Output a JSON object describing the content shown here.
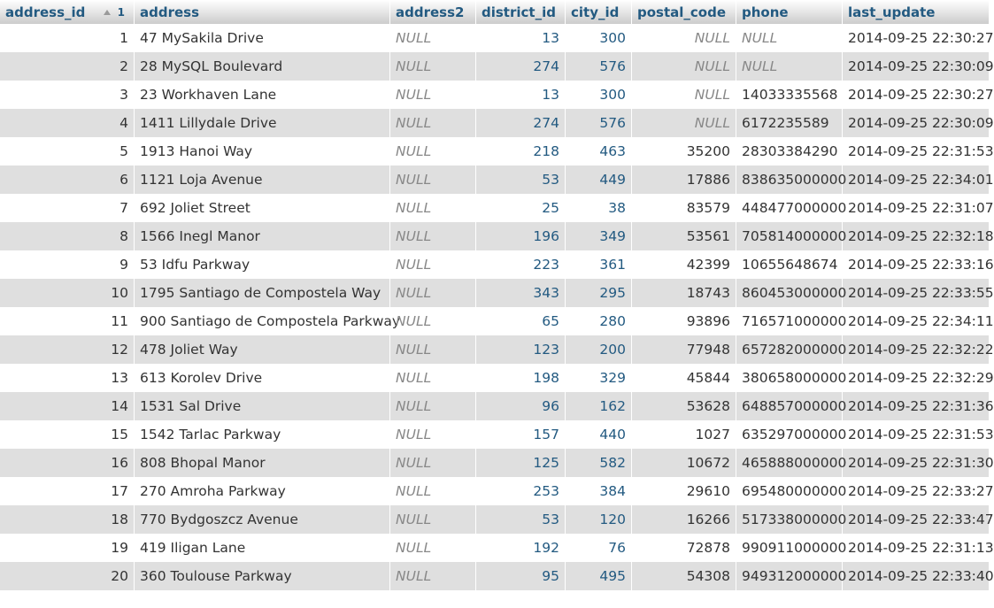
{
  "headers": {
    "address_id": "address_id",
    "sort_order": "1",
    "address": "address",
    "address2": "address2",
    "district_id": "district_id",
    "city_id": "city_id",
    "postal_code": "postal_code",
    "phone": "phone",
    "last_update": "last_update"
  },
  "rows": [
    {
      "address_id": "1",
      "address": "47 MySakila Drive",
      "address2": "NULL",
      "district_id": "13",
      "city_id": "300",
      "postal_code": "NULL",
      "phone": "NULL",
      "last_update": "2014-09-25 22:30:27"
    },
    {
      "address_id": "2",
      "address": "28 MySQL Boulevard",
      "address2": "NULL",
      "district_id": "274",
      "city_id": "576",
      "postal_code": "NULL",
      "phone": "NULL",
      "last_update": "2014-09-25 22:30:09"
    },
    {
      "address_id": "3",
      "address": "23 Workhaven Lane",
      "address2": "NULL",
      "district_id": "13",
      "city_id": "300",
      "postal_code": "NULL",
      "phone": "14033335568",
      "last_update": "2014-09-25 22:30:27"
    },
    {
      "address_id": "4",
      "address": "1411 Lillydale Drive",
      "address2": "NULL",
      "district_id": "274",
      "city_id": "576",
      "postal_code": "NULL",
      "phone": "6172235589",
      "last_update": "2014-09-25 22:30:09"
    },
    {
      "address_id": "5",
      "address": "1913 Hanoi Way",
      "address2": "NULL",
      "district_id": "218",
      "city_id": "463",
      "postal_code": "35200",
      "phone": "28303384290",
      "last_update": "2014-09-25 22:31:53"
    },
    {
      "address_id": "6",
      "address": "1121 Loja Avenue",
      "address2": "NULL",
      "district_id": "53",
      "city_id": "449",
      "postal_code": "17886",
      "phone": "838635000000",
      "last_update": "2014-09-25 22:34:01"
    },
    {
      "address_id": "7",
      "address": "692 Joliet Street",
      "address2": "NULL",
      "district_id": "25",
      "city_id": "38",
      "postal_code": "83579",
      "phone": "448477000000",
      "last_update": "2014-09-25 22:31:07"
    },
    {
      "address_id": "8",
      "address": "1566 Inegl Manor",
      "address2": "NULL",
      "district_id": "196",
      "city_id": "349",
      "postal_code": "53561",
      "phone": "705814000000",
      "last_update": "2014-09-25 22:32:18"
    },
    {
      "address_id": "9",
      "address": "53 Idfu Parkway",
      "address2": "NULL",
      "district_id": "223",
      "city_id": "361",
      "postal_code": "42399",
      "phone": "10655648674",
      "last_update": "2014-09-25 22:33:16"
    },
    {
      "address_id": "10",
      "address": "1795 Santiago de Compostela Way",
      "address2": "NULL",
      "district_id": "343",
      "city_id": "295",
      "postal_code": "18743",
      "phone": "860453000000",
      "last_update": "2014-09-25 22:33:55"
    },
    {
      "address_id": "11",
      "address": "900 Santiago de Compostela Parkway",
      "address2": "NULL",
      "district_id": "65",
      "city_id": "280",
      "postal_code": "93896",
      "phone": "716571000000",
      "last_update": "2014-09-25 22:34:11"
    },
    {
      "address_id": "12",
      "address": "478 Joliet Way",
      "address2": "NULL",
      "district_id": "123",
      "city_id": "200",
      "postal_code": "77948",
      "phone": "657282000000",
      "last_update": "2014-09-25 22:32:22"
    },
    {
      "address_id": "13",
      "address": "613 Korolev Drive",
      "address2": "NULL",
      "district_id": "198",
      "city_id": "329",
      "postal_code": "45844",
      "phone": "380658000000",
      "last_update": "2014-09-25 22:32:29"
    },
    {
      "address_id": "14",
      "address": "1531 Sal Drive",
      "address2": "NULL",
      "district_id": "96",
      "city_id": "162",
      "postal_code": "53628",
      "phone": "648857000000",
      "last_update": "2014-09-25 22:31:36"
    },
    {
      "address_id": "15",
      "address": "1542 Tarlac Parkway",
      "address2": "NULL",
      "district_id": "157",
      "city_id": "440",
      "postal_code": "1027",
      "phone": "635297000000",
      "last_update": "2014-09-25 22:31:53"
    },
    {
      "address_id": "16",
      "address": "808 Bhopal Manor",
      "address2": "NULL",
      "district_id": "125",
      "city_id": "582",
      "postal_code": "10672",
      "phone": "465888000000",
      "last_update": "2014-09-25 22:31:30"
    },
    {
      "address_id": "17",
      "address": "270 Amroha Parkway",
      "address2": "NULL",
      "district_id": "253",
      "city_id": "384",
      "postal_code": "29610",
      "phone": "695480000000",
      "last_update": "2014-09-25 22:33:27"
    },
    {
      "address_id": "18",
      "address": "770 Bydgoszcz Avenue",
      "address2": "NULL",
      "district_id": "53",
      "city_id": "120",
      "postal_code": "16266",
      "phone": "517338000000",
      "last_update": "2014-09-25 22:33:47"
    },
    {
      "address_id": "19",
      "address": "419 Iligan Lane",
      "address2": "NULL",
      "district_id": "192",
      "city_id": "76",
      "postal_code": "72878",
      "phone": "990911000000",
      "last_update": "2014-09-25 22:31:13"
    },
    {
      "address_id": "20",
      "address": "360 Toulouse Parkway",
      "address2": "NULL",
      "district_id": "95",
      "city_id": "495",
      "postal_code": "54308",
      "phone": "949312000000",
      "last_update": "2014-09-25 22:33:40"
    }
  ],
  "icons": {
    "sort_indicator": "sort-ascending-icon"
  },
  "colors": {
    "header_text": "#235a81",
    "link_text": "#235a81",
    "null_text": "#888888",
    "row_even": "#dfdfdf",
    "row_odd": "#ffffff"
  }
}
